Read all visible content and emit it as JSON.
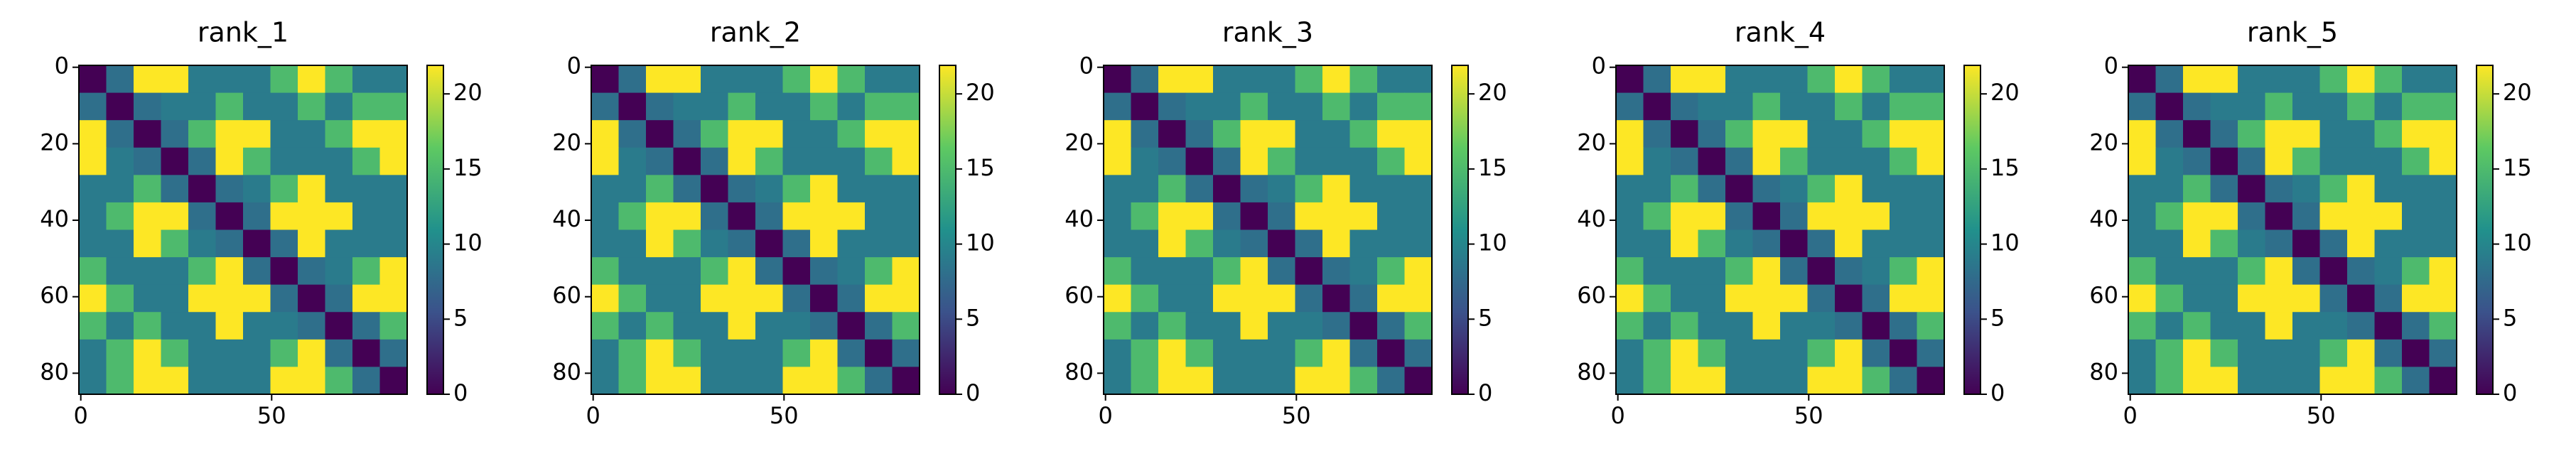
{
  "chart_data": [
    {
      "type": "heatmap",
      "title": "rank_1",
      "colormap": "viridis",
      "xlim": [
        -0.5,
        85.5
      ],
      "ylim": [
        85.5,
        -0.5
      ],
      "xticks": [
        0,
        50
      ],
      "yticks": [
        0,
        20,
        40,
        60,
        80
      ],
      "zlim": [
        0,
        21.9
      ],
      "zticks": [
        0,
        5,
        10,
        15,
        20
      ],
      "z": [
        [
          0,
          8,
          21.9,
          21.9,
          9,
          9,
          9,
          15,
          21.9,
          15,
          9,
          9
        ],
        [
          8,
          0,
          8,
          9,
          9,
          15,
          9,
          9,
          15,
          9,
          15,
          15
        ],
        [
          21.9,
          8,
          0,
          8,
          15,
          21.9,
          21.9,
          9,
          9,
          15,
          21.9,
          21.9
        ],
        [
          21.9,
          9,
          8,
          0,
          8,
          21.9,
          15,
          9,
          9,
          9,
          15,
          21.9
        ],
        [
          9,
          9,
          15,
          8,
          0,
          8,
          9,
          15,
          21.9,
          9,
          9,
          9
        ],
        [
          9,
          15,
          21.9,
          21.9,
          8,
          0,
          8,
          21.9,
          21.9,
          21.9,
          9,
          9
        ],
        [
          9,
          9,
          21.9,
          15,
          9,
          8,
          0,
          8,
          21.9,
          9,
          9,
          9
        ],
        [
          15,
          9,
          9,
          9,
          15,
          21.9,
          8,
          0,
          8,
          9,
          15,
          21.9
        ],
        [
          21.9,
          15,
          9,
          9,
          21.9,
          21.9,
          21.9,
          8,
          0,
          8,
          21.9,
          21.9
        ],
        [
          15,
          9,
          15,
          9,
          9,
          21.9,
          9,
          9,
          8,
          0,
          8,
          15
        ],
        [
          9,
          15,
          21.9,
          15,
          9,
          9,
          9,
          15,
          21.9,
          8,
          0,
          8
        ],
        [
          9,
          15,
          21.9,
          21.9,
          9,
          9,
          9,
          21.9,
          21.9,
          15,
          8,
          0
        ]
      ]
    },
    {
      "type": "heatmap",
      "title": "rank_2",
      "colormap": "viridis",
      "xlim": [
        -0.5,
        85.5
      ],
      "ylim": [
        85.5,
        -0.5
      ],
      "xticks": [
        0,
        50
      ],
      "yticks": [
        0,
        20,
        40,
        60,
        80
      ],
      "zlim": [
        0,
        21.9
      ],
      "zticks": [
        0,
        5,
        10,
        15,
        20
      ],
      "z": [
        [
          0,
          8,
          21.9,
          21.9,
          9,
          9,
          9,
          15,
          21.9,
          15,
          9,
          9
        ],
        [
          8,
          0,
          8,
          9,
          9,
          15,
          9,
          9,
          15,
          9,
          15,
          15
        ],
        [
          21.9,
          8,
          0,
          8,
          15,
          21.9,
          21.9,
          9,
          9,
          15,
          21.9,
          21.9
        ],
        [
          21.9,
          9,
          8,
          0,
          8,
          21.9,
          15,
          9,
          9,
          9,
          15,
          21.9
        ],
        [
          9,
          9,
          15,
          8,
          0,
          8,
          9,
          15,
          21.9,
          9,
          9,
          9
        ],
        [
          9,
          15,
          21.9,
          21.9,
          8,
          0,
          8,
          21.9,
          21.9,
          21.9,
          9,
          9
        ],
        [
          9,
          9,
          21.9,
          15,
          9,
          8,
          0,
          8,
          21.9,
          9,
          9,
          9
        ],
        [
          15,
          9,
          9,
          9,
          15,
          21.9,
          8,
          0,
          8,
          9,
          15,
          21.9
        ],
        [
          21.9,
          15,
          9,
          9,
          21.9,
          21.9,
          21.9,
          8,
          0,
          8,
          21.9,
          21.9
        ],
        [
          15,
          9,
          15,
          9,
          9,
          21.9,
          9,
          9,
          8,
          0,
          8,
          15
        ],
        [
          9,
          15,
          21.9,
          15,
          9,
          9,
          9,
          15,
          21.9,
          8,
          0,
          8
        ],
        [
          9,
          15,
          21.9,
          21.9,
          9,
          9,
          9,
          21.9,
          21.9,
          15,
          8,
          0
        ]
      ]
    },
    {
      "type": "heatmap",
      "title": "rank_3",
      "colormap": "viridis",
      "xlim": [
        -0.5,
        85.5
      ],
      "ylim": [
        85.5,
        -0.5
      ],
      "xticks": [
        0,
        50
      ],
      "yticks": [
        0,
        20,
        40,
        60,
        80
      ],
      "zlim": [
        0,
        21.9
      ],
      "zticks": [
        0,
        5,
        10,
        15,
        20
      ],
      "z": [
        [
          0,
          8,
          21.9,
          21.9,
          9,
          9,
          9,
          15,
          21.9,
          15,
          9,
          9
        ],
        [
          8,
          0,
          8,
          9,
          9,
          15,
          9,
          9,
          15,
          9,
          15,
          15
        ],
        [
          21.9,
          8,
          0,
          8,
          15,
          21.9,
          21.9,
          9,
          9,
          15,
          21.9,
          21.9
        ],
        [
          21.9,
          9,
          8,
          0,
          8,
          21.9,
          15,
          9,
          9,
          9,
          15,
          21.9
        ],
        [
          9,
          9,
          15,
          8,
          0,
          8,
          9,
          15,
          21.9,
          9,
          9,
          9
        ],
        [
          9,
          15,
          21.9,
          21.9,
          8,
          0,
          8,
          21.9,
          21.9,
          21.9,
          9,
          9
        ],
        [
          9,
          9,
          21.9,
          15,
          9,
          8,
          0,
          8,
          21.9,
          9,
          9,
          9
        ],
        [
          15,
          9,
          9,
          9,
          15,
          21.9,
          8,
          0,
          8,
          9,
          15,
          21.9
        ],
        [
          21.9,
          15,
          9,
          9,
          21.9,
          21.9,
          21.9,
          8,
          0,
          8,
          21.9,
          21.9
        ],
        [
          15,
          9,
          15,
          9,
          9,
          21.9,
          9,
          9,
          8,
          0,
          8,
          15
        ],
        [
          9,
          15,
          21.9,
          15,
          9,
          9,
          9,
          15,
          21.9,
          8,
          0,
          8
        ],
        [
          9,
          15,
          21.9,
          21.9,
          9,
          9,
          9,
          21.9,
          21.9,
          15,
          8,
          0
        ]
      ]
    },
    {
      "type": "heatmap",
      "title": "rank_4",
      "colormap": "viridis",
      "xlim": [
        -0.5,
        85.5
      ],
      "ylim": [
        85.5,
        -0.5
      ],
      "xticks": [
        0,
        50
      ],
      "yticks": [
        0,
        20,
        40,
        60,
        80
      ],
      "zlim": [
        0,
        21.9
      ],
      "zticks": [
        0,
        5,
        10,
        15,
        20
      ],
      "z": [
        [
          0,
          8,
          21.9,
          21.9,
          9,
          9,
          9,
          15,
          21.9,
          15,
          9,
          9
        ],
        [
          8,
          0,
          8,
          9,
          9,
          15,
          9,
          9,
          15,
          9,
          15,
          15
        ],
        [
          21.9,
          8,
          0,
          8,
          15,
          21.9,
          21.9,
          9,
          9,
          15,
          21.9,
          21.9
        ],
        [
          21.9,
          9,
          8,
          0,
          8,
          21.9,
          15,
          9,
          9,
          9,
          15,
          21.9
        ],
        [
          9,
          9,
          15,
          8,
          0,
          8,
          9,
          15,
          21.9,
          9,
          9,
          9
        ],
        [
          9,
          15,
          21.9,
          21.9,
          8,
          0,
          8,
          21.9,
          21.9,
          21.9,
          9,
          9
        ],
        [
          9,
          9,
          21.9,
          15,
          9,
          8,
          0,
          8,
          21.9,
          9,
          9,
          9
        ],
        [
          15,
          9,
          9,
          9,
          15,
          21.9,
          8,
          0,
          8,
          9,
          15,
          21.9
        ],
        [
          21.9,
          15,
          9,
          9,
          21.9,
          21.9,
          21.9,
          8,
          0,
          8,
          21.9,
          21.9
        ],
        [
          15,
          9,
          15,
          9,
          9,
          21.9,
          9,
          9,
          8,
          0,
          8,
          15
        ],
        [
          9,
          15,
          21.9,
          15,
          9,
          9,
          9,
          15,
          21.9,
          8,
          0,
          8
        ],
        [
          9,
          15,
          21.9,
          21.9,
          9,
          9,
          9,
          21.9,
          21.9,
          15,
          8,
          0
        ]
      ]
    },
    {
      "type": "heatmap",
      "title": "rank_5",
      "colormap": "viridis",
      "xlim": [
        -0.5,
        85.5
      ],
      "ylim": [
        85.5,
        -0.5
      ],
      "xticks": [
        0,
        50
      ],
      "yticks": [
        0,
        20,
        40,
        60,
        80
      ],
      "zlim": [
        0,
        21.9
      ],
      "zticks": [
        0,
        5,
        10,
        15,
        20
      ],
      "z": [
        [
          0,
          8,
          21.9,
          21.9,
          9,
          9,
          9,
          15,
          21.9,
          15,
          9,
          9
        ],
        [
          8,
          0,
          8,
          9,
          9,
          15,
          9,
          9,
          15,
          9,
          15,
          15
        ],
        [
          21.9,
          8,
          0,
          8,
          15,
          21.9,
          21.9,
          9,
          9,
          15,
          21.9,
          21.9
        ],
        [
          21.9,
          9,
          8,
          0,
          8,
          21.9,
          15,
          9,
          9,
          9,
          15,
          21.9
        ],
        [
          9,
          9,
          15,
          8,
          0,
          8,
          9,
          15,
          21.9,
          9,
          9,
          9
        ],
        [
          9,
          15,
          21.9,
          21.9,
          8,
          0,
          8,
          21.9,
          21.9,
          21.9,
          9,
          9
        ],
        [
          9,
          9,
          21.9,
          15,
          9,
          8,
          0,
          8,
          21.9,
          9,
          9,
          9
        ],
        [
          15,
          9,
          9,
          9,
          15,
          21.9,
          8,
          0,
          8,
          9,
          15,
          21.9
        ],
        [
          21.9,
          15,
          9,
          9,
          21.9,
          21.9,
          21.9,
          8,
          0,
          8,
          21.9,
          21.9
        ],
        [
          15,
          9,
          15,
          9,
          9,
          21.9,
          9,
          9,
          8,
          0,
          8,
          15
        ],
        [
          9,
          15,
          21.9,
          15,
          9,
          9,
          9,
          15,
          21.9,
          8,
          0,
          8
        ],
        [
          9,
          15,
          21.9,
          21.9,
          9,
          9,
          9,
          21.9,
          21.9,
          15,
          8,
          0
        ]
      ]
    }
  ]
}
